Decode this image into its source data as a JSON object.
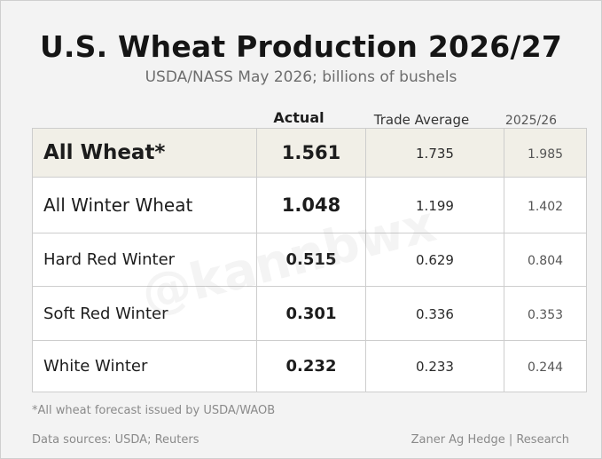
{
  "chart_data": {
    "type": "table",
    "title": "U.S. Wheat Production 2026/27",
    "subtitle": "USDA/NASS May 2026; billions of bushels",
    "columns": [
      "Actual",
      "Trade Average",
      "2025/26"
    ],
    "rows": [
      {
        "label": "All Wheat*",
        "actual": "1.561",
        "trade_average": "1.735",
        "prior_year": "1.985"
      },
      {
        "label": "All Winter Wheat",
        "actual": "1.048",
        "trade_average": "1.199",
        "prior_year": "1.402"
      },
      {
        "label": "Hard Red Winter",
        "actual": "0.515",
        "trade_average": "0.629",
        "prior_year": "0.804"
      },
      {
        "label": "Soft Red Winter",
        "actual": "0.301",
        "trade_average": "0.336",
        "prior_year": "0.353"
      },
      {
        "label": "White Winter",
        "actual": "0.232",
        "trade_average": "0.233",
        "prior_year": "0.244"
      }
    ],
    "footnote": "*All wheat forecast issued by USDA/WAOB",
    "sources": "Data sources: USDA; Reuters",
    "credit": "Zaner Ag Hedge | Research",
    "watermark": "@kannbwx"
  },
  "colors": {
    "background": "#f3f3f3",
    "highlight_row": "#f1efe7",
    "cell": "#ffffff",
    "grid": "#cdcdcd"
  }
}
